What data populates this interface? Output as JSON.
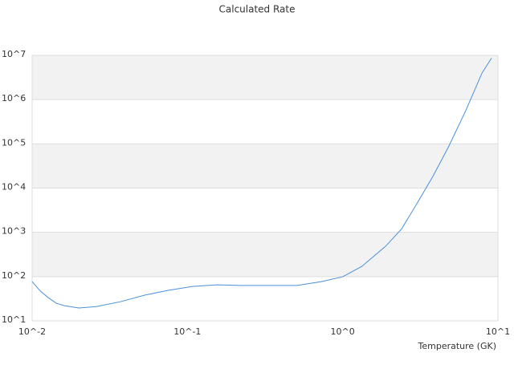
{
  "chart_data": {
    "type": "line",
    "title": "Calculated Rate",
    "x_label": "Temperature (GK)",
    "xscale": "log",
    "yscale": "log",
    "grid": true,
    "bands": true,
    "xlim": [
      0.01,
      10
    ],
    "ylim": [
      10,
      10000000
    ],
    "xticks": [
      {
        "value": 0.01,
        "label": "10^-2"
      },
      {
        "value": 0.1,
        "label": "10^-1"
      },
      {
        "value": 1,
        "label": "10^0"
      },
      {
        "value": 10,
        "label": "10^1"
      }
    ],
    "yticks": [
      {
        "value": 10,
        "label": "10^1"
      },
      {
        "value": 100,
        "label": "10^2"
      },
      {
        "value": 1000,
        "label": "10^3"
      },
      {
        "value": 10000,
        "label": "10^4"
      },
      {
        "value": 100000,
        "label": "10^5"
      },
      {
        "value": 1000000,
        "label": "10^6"
      },
      {
        "value": 10000000,
        "label": "10^7"
      }
    ],
    "series": [
      {
        "color": "#4a90d9",
        "x": [
          0.01,
          0.0113,
          0.0127,
          0.0143,
          0.0161,
          0.02,
          0.0259,
          0.037,
          0.053,
          0.0757,
          0.108,
          0.155,
          0.22,
          0.316,
          0.51,
          0.73,
          1.0,
          1.33,
          1.89,
          2.4,
          3.0,
          3.8,
          4.8,
          6.2,
          7.9,
          9.1
        ],
        "values": [
          77,
          47,
          33.5,
          25,
          22,
          19.5,
          21,
          27,
          38,
          49,
          60,
          65,
          63,
          63,
          63,
          77,
          99,
          170,
          484,
          1200,
          4400,
          18000,
          85000,
          560000,
          4000000,
          8700000
        ]
      }
    ]
  }
}
